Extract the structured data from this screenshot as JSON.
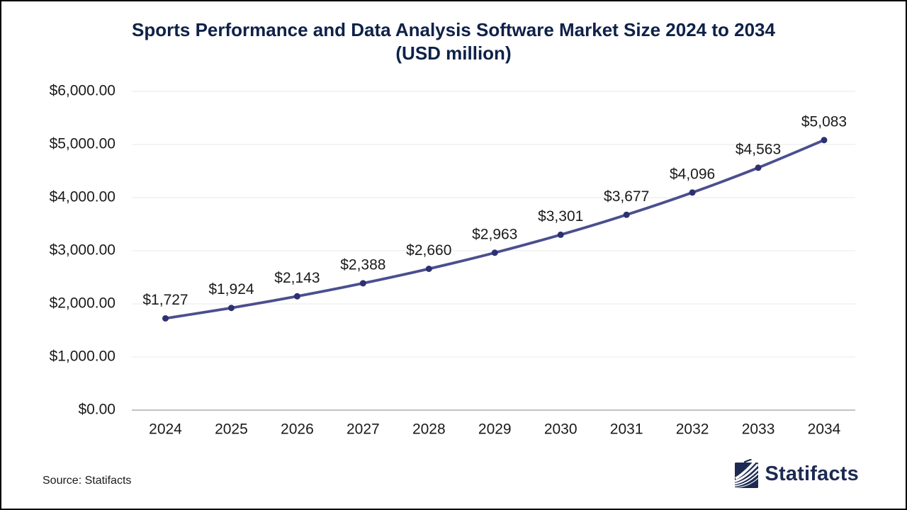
{
  "title": {
    "line1": "Sports Performance and Data Analysis Software Market Size 2024 to 2034",
    "line2": "(USD million)"
  },
  "source_note": "Source: Statifacts",
  "logo": {
    "brand": "Statifacts"
  },
  "colors": {
    "title": "#0e2148",
    "line": "#4b4f8e",
    "marker": "#2d3170",
    "grid": "#f0f0f0",
    "axis_baseline": "#c3c3c3",
    "label_text": "#1a1a1a",
    "logo_navy": "#1d2b52"
  },
  "chart_data": {
    "type": "line",
    "title": "Sports Performance and Data Analysis Software Market Size 2024 to 2034 (USD million)",
    "categories": [
      "2024",
      "2025",
      "2026",
      "2027",
      "2028",
      "2029",
      "2030",
      "2031",
      "2032",
      "2033",
      "2034"
    ],
    "values": [
      1727,
      1924,
      2143,
      2388,
      2660,
      2963,
      3301,
      3677,
      4096,
      4563,
      5083
    ],
    "point_labels": [
      "$1,727",
      "$1,924",
      "$2,143",
      "$2,388",
      "$2,660",
      "$2,963",
      "$3,301",
      "$3,677",
      "$4,096",
      "$4,563",
      "$5,083"
    ],
    "xlabel": "",
    "ylabel": "",
    "ylim": [
      0,
      6000
    ],
    "y_ticks": [
      0,
      1000,
      2000,
      3000,
      4000,
      5000,
      6000
    ],
    "y_tick_labels": [
      "$0.00",
      "$1,000.00",
      "$2,000.00",
      "$3,000.00",
      "$4,000.00",
      "$5,000.00",
      "$6,000.00"
    ],
    "grid": "horizontal",
    "legend": "none",
    "markers": true
  }
}
